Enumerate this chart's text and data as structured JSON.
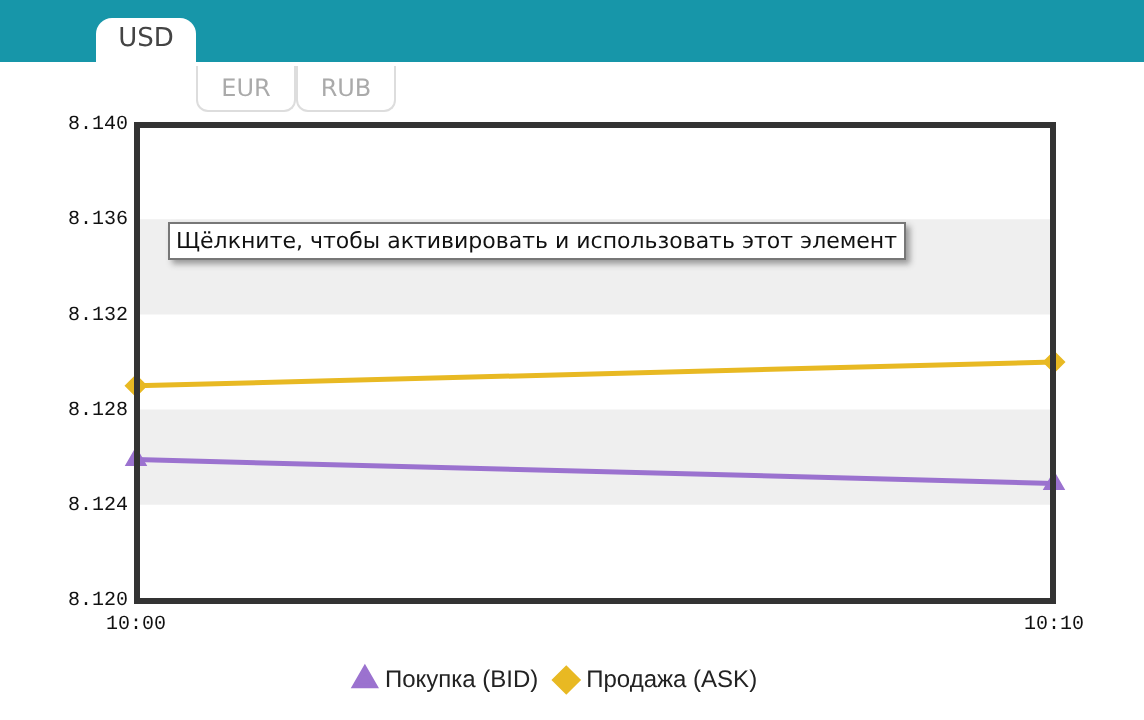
{
  "chart_data": {
    "type": "line",
    "title": "USD",
    "annotations": [
      "EUR",
      "RUB",
      "Щёлкните, чтобы активировать и использовать этот элемент"
    ],
    "categories": [
      "10:00",
      "10:10"
    ],
    "series": [
      {
        "name": "Покупка (BID)",
        "color": "#9b72cf",
        "values": [
          8.1259,
          8.1249
        ],
        "marker": "triangle"
      },
      {
        "name": "Продажа (ASK)",
        "color": "#e8b923",
        "values": [
          8.129,
          8.13
        ],
        "marker": "diamond"
      }
    ],
    "ylim": [
      8.12,
      8.14
    ],
    "yticks": [
      {
        "value": 8.12,
        "label": "8.120"
      },
      {
        "value": 8.124,
        "label": "8.124"
      },
      {
        "value": 8.128,
        "label": "8.128"
      },
      {
        "value": 8.132,
        "label": "8.132"
      },
      {
        "value": 8.136,
        "label": "8.136"
      },
      {
        "value": 8.14,
        "label": "8.140"
      }
    ],
    "bands": [
      {
        "axis": "y",
        "from": 8.124,
        "to": 8.128,
        "color": "#efefef"
      },
      {
        "axis": "y",
        "from": 8.132,
        "to": 8.136,
        "color": "#efefef"
      }
    ],
    "grid": false,
    "legend": "bottom",
    "line_style": "solid"
  }
}
